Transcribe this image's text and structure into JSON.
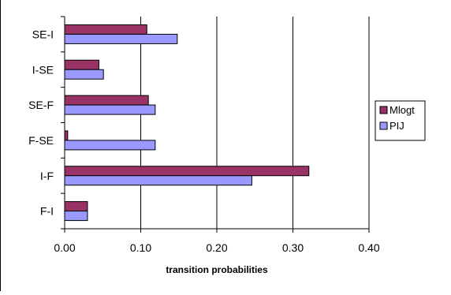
{
  "chart_data": {
    "type": "bar",
    "orientation": "horizontal",
    "categories": [
      "SE-I",
      "I-SE",
      "SE-F",
      "F-SE",
      "I-F",
      "F-I"
    ],
    "series": [
      {
        "name": "Mlogt",
        "values": [
          0.108,
          0.045,
          0.11,
          0.004,
          0.321,
          0.03
        ],
        "color": "#993366"
      },
      {
        "name": "PIJ",
        "values": [
          0.148,
          0.051,
          0.119,
          0.119,
          0.246,
          0.03
        ],
        "color": "#9999ff"
      }
    ],
    "xlabel": "transition probabilities",
    "ylabel": "",
    "xlim": [
      0,
      0.4
    ],
    "xticks": [
      "0.00",
      "0.10",
      "0.20",
      "0.30",
      "0.40"
    ],
    "grid": "vertical",
    "legend": "right"
  }
}
